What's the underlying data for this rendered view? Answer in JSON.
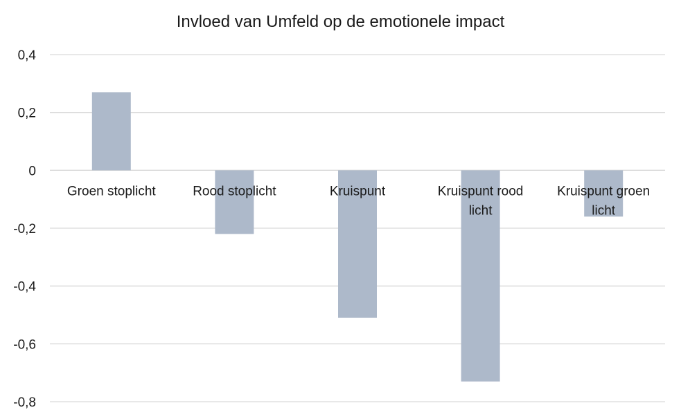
{
  "chart_data": {
    "type": "bar",
    "title": "Invloed van Umfeld op de emotionele impact",
    "xlabel": "",
    "ylabel": "",
    "categories": [
      [
        "Groen stoplicht"
      ],
      [
        "Rood stoplicht"
      ],
      [
        "Kruispunt"
      ],
      [
        "Kruispunt rood",
        "licht"
      ],
      [
        "Kruispunt groen",
        "licht"
      ]
    ],
    "values": [
      0.27,
      -0.22,
      -0.51,
      -0.73,
      -0.16
    ],
    "ylim": [
      -0.8,
      0.4
    ],
    "yticks": [
      0.4,
      0.2,
      0,
      -0.2,
      -0.4,
      -0.6,
      -0.8
    ],
    "ytick_labels": [
      "0,4",
      "0,2",
      "0",
      "-0,2",
      "-0,4",
      "-0,6",
      "-0,8"
    ],
    "bar_color": "#adb9ca",
    "grid_color": "#d9d9d9",
    "grid": true,
    "legend": "none"
  }
}
